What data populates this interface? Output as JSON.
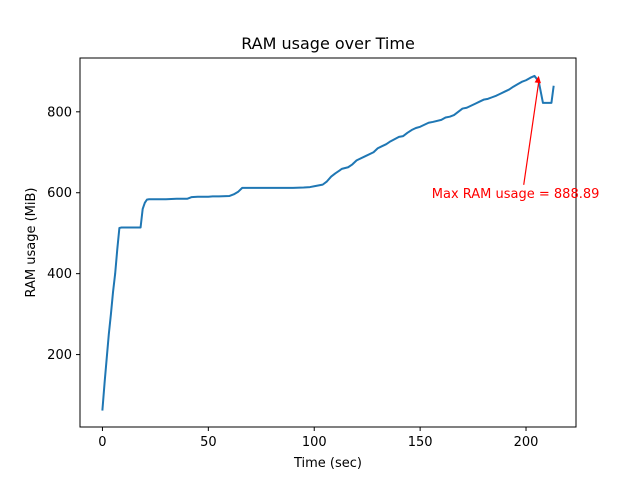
{
  "chart_data": {
    "type": "line",
    "title": "RAM usage over Time",
    "xlabel": "Time (sec)",
    "ylabel": "RAM usage (MiB)",
    "xlim": [
      -10.6,
      223.6
    ],
    "ylim": [
      21,
      933
    ],
    "xticks": [
      0,
      50,
      100,
      150,
      200
    ],
    "yticks": [
      200,
      400,
      600,
      800
    ],
    "grid": false,
    "line_color": "#1f77b4",
    "series": [
      {
        "x": [
          0,
          1,
          2,
          3,
          4,
          5,
          6,
          7,
          8,
          9,
          10,
          12,
          14,
          16,
          18,
          19,
          20,
          21,
          22,
          25,
          30,
          35,
          40,
          42,
          45,
          50,
          52,
          55,
          60,
          62,
          64,
          66,
          68,
          70,
          75,
          80,
          85,
          90,
          95,
          98,
          100,
          104,
          106,
          108,
          110,
          112,
          113,
          116,
          118,
          120,
          124,
          128,
          130,
          132,
          134,
          136,
          140,
          142,
          144,
          146,
          148,
          150,
          152,
          154,
          156,
          160,
          162,
          164,
          166,
          168,
          170,
          172,
          174,
          176,
          178,
          180,
          182,
          184,
          186,
          188,
          190,
          192,
          194,
          196,
          198,
          200,
          202,
          204,
          206,
          208,
          209,
          210,
          212,
          213
        ],
        "y": [
          64,
          130,
          190,
          250,
          300,
          355,
          400,
          460,
          513,
          514,
          514,
          514,
          514,
          514,
          514,
          560,
          575,
          583,
          584,
          584,
          584,
          585,
          585,
          589,
          590,
          590,
          591,
          591,
          592,
          596,
          602,
          612,
          612,
          612,
          612,
          612,
          612,
          612,
          613,
          614,
          616,
          620,
          628,
          640,
          648,
          655,
          659,
          663,
          670,
          680,
          690,
          700,
          710,
          715,
          720,
          727,
          738,
          740,
          748,
          755,
          760,
          763,
          768,
          773,
          775,
          780,
          786,
          788,
          792,
          800,
          808,
          810,
          815,
          820,
          825,
          830,
          832,
          836,
          840,
          845,
          850,
          855,
          862,
          868,
          874,
          878,
          884,
          888.89,
          875,
          822,
          822,
          822,
          822,
          862
        ]
      }
    ],
    "annotation": {
      "text": "Max RAM usage = 888.89",
      "color": "#ff0000",
      "point": [
        206,
        888.89
      ],
      "text_pos": [
        155.5,
        587.5
      ]
    }
  }
}
